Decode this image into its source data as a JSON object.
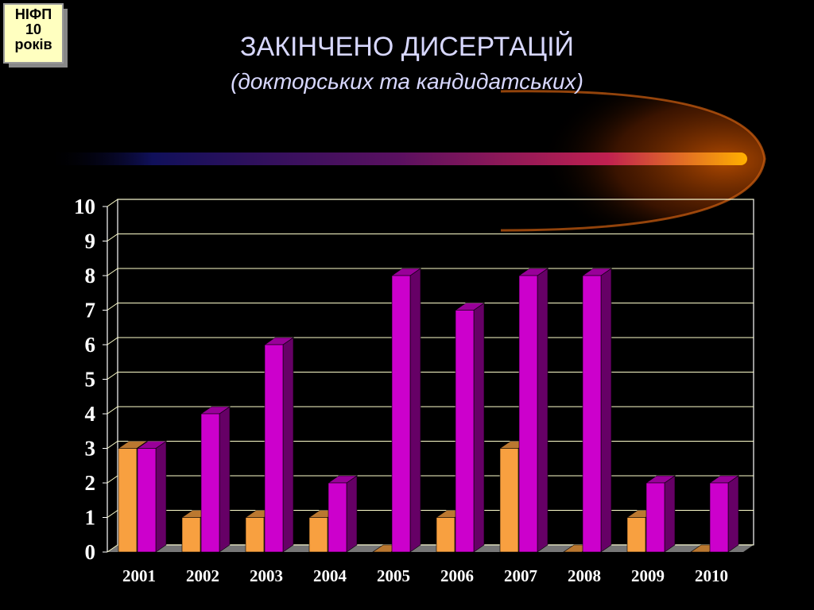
{
  "badge": [
    "НІФП",
    "10",
    "років"
  ],
  "chart_data": {
    "type": "bar3d",
    "title": "ЗАКІНЧЕНО ДИСЕРТАЦІЙ",
    "subtitle": "(докторських та кандидатських)",
    "categories": [
      "2001",
      "2002",
      "2003",
      "2004",
      "2005",
      "2006",
      "2007",
      "2008",
      "2009",
      "2010"
    ],
    "series": [
      {
        "color": "#f8a040",
        "values": [
          3,
          1,
          1,
          1,
          0,
          1,
          3,
          0,
          1,
          0
        ]
      },
      {
        "color": "#cc00cc",
        "values": [
          3,
          4,
          6,
          2,
          8,
          7,
          8,
          8,
          2,
          2
        ]
      }
    ],
    "ylim": [
      0,
      10
    ],
    "yticks": [
      0,
      1,
      2,
      3,
      4,
      5,
      6,
      7,
      8,
      9,
      10
    ],
    "grid": true
  }
}
